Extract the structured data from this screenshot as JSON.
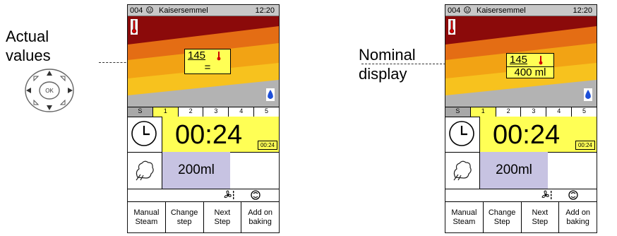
{
  "callouts": {
    "left": "Actual\nvalues",
    "right": "Nominal\ndisplay"
  },
  "dpad": {
    "center_label": "OK"
  },
  "panels": [
    {
      "program_number": "004",
      "program_name": "Kaisersemmel",
      "time": "12:20",
      "temp_value": "145",
      "temp_second": "=",
      "steps": [
        "S",
        "1",
        "2",
        "3",
        "4",
        "5"
      ],
      "active_step": "1",
      "timer_big": "00:24",
      "timer_small": "00:24",
      "steam_amount": "200ml",
      "buttons": [
        "Manual\nSteam",
        "Change\nstep",
        "Next\nStep",
        "Add on\nbaking"
      ]
    },
    {
      "program_number": "004",
      "program_name": "Kaisersemmel",
      "time": "12:20",
      "temp_value": "145",
      "temp_second": "400 ml",
      "steps": [
        "S",
        "1",
        "2",
        "3",
        "4",
        "5"
      ],
      "active_step": "1",
      "timer_big": "00:24",
      "timer_small": "00:24",
      "steam_amount": "200ml",
      "buttons": [
        "Manual\nSteam",
        "Change\nStep",
        "Next\nStep",
        "Add on\nbaking"
      ]
    }
  ],
  "icons": {
    "smiley": "smiley-icon",
    "thermometer": "thermometer-icon",
    "water_drop": "water-drop-icon",
    "clock": "clock-icon",
    "steam": "steam-icon",
    "fan": "fan-icon",
    "circulation": "circulation-icon",
    "dpad": "dpad-icon"
  },
  "colors": {
    "oven_dark": "#8b0a0a",
    "oven_orange": "#e46d14",
    "oven_amber": "#f2a314",
    "oven_yellow": "#f7c21e",
    "oven_floor": "#b3b3b3",
    "highlight_yellow": "#ffff55",
    "steam_lavender": "#c7c3e2",
    "titlebar_gray": "#c8c8c8"
  }
}
